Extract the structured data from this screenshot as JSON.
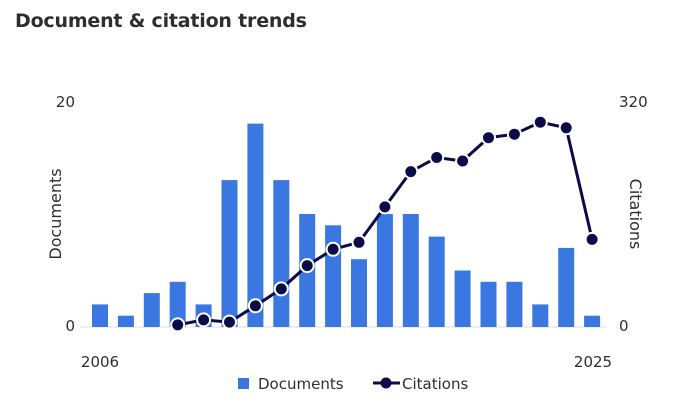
{
  "title": "Document & citation trends",
  "colors": {
    "documents": "#3a77e0",
    "citations": "#0b0b4a"
  },
  "chart_data": {
    "type": "bar+line",
    "x": [
      2006,
      2007,
      2008,
      2009,
      2010,
      2011,
      2012,
      2013,
      2014,
      2015,
      2016,
      2017,
      2018,
      2019,
      2020,
      2021,
      2022,
      2023,
      2024,
      2025
    ],
    "series": [
      {
        "name": "Documents",
        "type": "bar",
        "axis": "left",
        "values": [
          2,
          1,
          3,
          4,
          2,
          13,
          18,
          13,
          10,
          9,
          6,
          10,
          10,
          8,
          5,
          4,
          4,
          2,
          7,
          1
        ]
      },
      {
        "name": "Citations",
        "type": "line",
        "axis": "right",
        "values": [
          null,
          null,
          null,
          3,
          10,
          7,
          30,
          54,
          87,
          110,
          120,
          170,
          220,
          240,
          235,
          268,
          273,
          290,
          282,
          124
        ]
      }
    ],
    "xlabel": "",
    "ylabel_left": "Documents",
    "ylabel_right": "Citations",
    "ylim_left": [
      0,
      20
    ],
    "ylim_right": [
      0,
      320
    ],
    "x_ticks": [
      "2006",
      "2025"
    ],
    "y_ticks_left": [
      "20",
      "0"
    ],
    "y_ticks_right": [
      "320",
      "0"
    ],
    "grid": false,
    "legend": "bottom"
  }
}
